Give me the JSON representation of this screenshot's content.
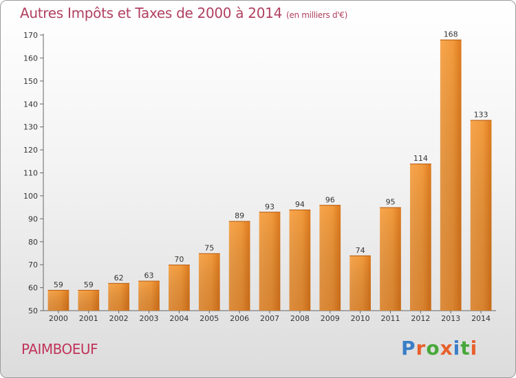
{
  "chart_data": {
    "type": "bar",
    "title": "Autres Impôts et Taxes de 2000 à 2014",
    "subtitle": "(en milliers d'€)",
    "categories": [
      "2000",
      "2001",
      "2002",
      "2003",
      "2004",
      "2005",
      "2006",
      "2007",
      "2008",
      "2009",
      "2010",
      "2011",
      "2012",
      "2013",
      "2014"
    ],
    "values": [
      59,
      59,
      62,
      63,
      70,
      75,
      89,
      93,
      94,
      96,
      74,
      95,
      114,
      168,
      133
    ],
    "ylim": [
      50,
      170
    ],
    "yticks": [
      50,
      60,
      70,
      80,
      90,
      100,
      110,
      120,
      130,
      140,
      150,
      160,
      170
    ],
    "grid": false,
    "bar_color": "#f08c2c"
  },
  "footer": {
    "place": "PAIMBOEUF",
    "logo_text": "Proxiti",
    "logo_colors": [
      "#3a7ec8",
      "#e8602c",
      "#47a83a",
      "#e8602c",
      "#3a7ec8",
      "#47a83a",
      "#e8602c"
    ]
  }
}
